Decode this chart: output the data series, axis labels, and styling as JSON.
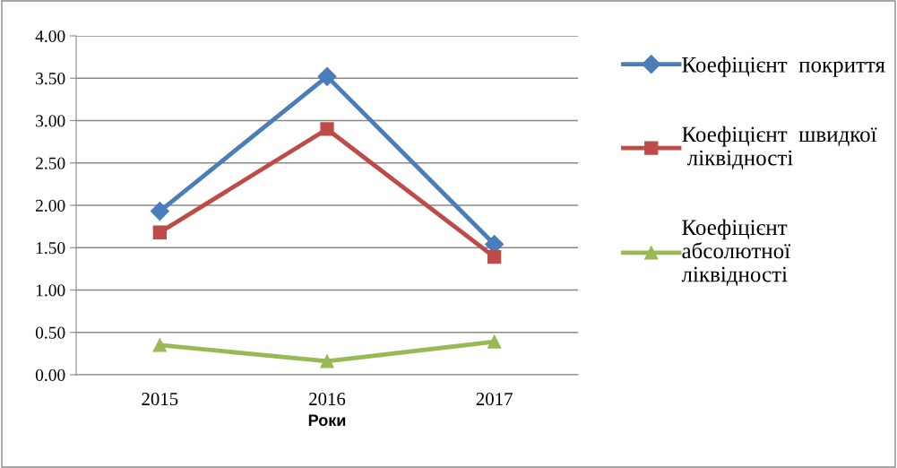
{
  "chart_data": {
    "type": "line",
    "xlabel": "Роки",
    "categories": [
      "2015",
      "2016",
      "2017"
    ],
    "series": [
      {
        "name": "Коефіцієнт  покриття",
        "color": "#4a7ebb",
        "marker": "diamond",
        "values": [
          1.93,
          3.52,
          1.54
        ]
      },
      {
        "name": "Коефіцієнт  швидкої\n ліквідності",
        "color": "#be4b48",
        "marker": "square",
        "values": [
          1.68,
          2.9,
          1.39
        ]
      },
      {
        "name": "Коефіцієнт\nабсолютної\nліквідності",
        "color": "#98b954",
        "marker": "triangle",
        "values": [
          0.35,
          0.16,
          0.39
        ]
      }
    ],
    "ylim": [
      0,
      4
    ],
    "yticks": [
      {
        "value": 0,
        "label": "0.00"
      },
      {
        "value": 0.5,
        "label": "0.50"
      },
      {
        "value": 1,
        "label": "1.00"
      },
      {
        "value": 1.5,
        "label": "1.50"
      },
      {
        "value": 2,
        "label": "2.00"
      },
      {
        "value": 2.5,
        "label": "2.50"
      },
      {
        "value": 3,
        "label": "3.00"
      },
      {
        "value": 3.5,
        "label": "3.50"
      },
      {
        "value": 4,
        "label": "4.00"
      }
    ],
    "grid": "y",
    "legend": "right"
  }
}
